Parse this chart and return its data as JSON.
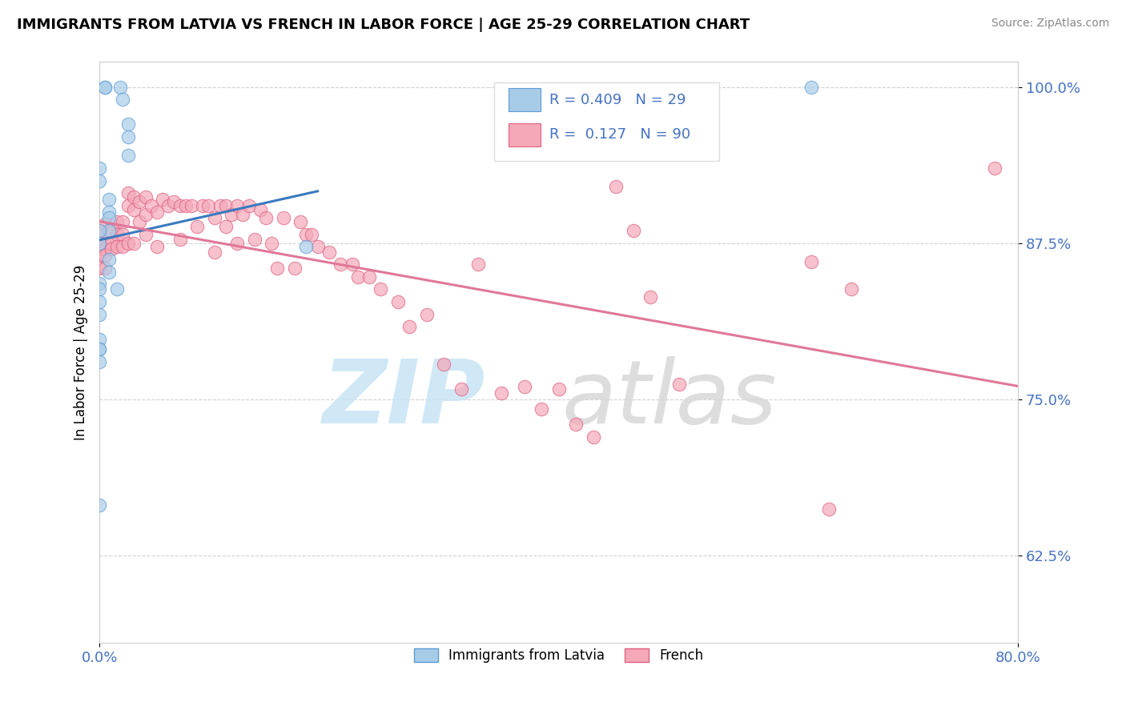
{
  "title": "IMMIGRANTS FROM LATVIA VS FRENCH IN LABOR FORCE | AGE 25-29 CORRELATION CHART",
  "source_text": "Source: ZipAtlas.com",
  "ylabel": "In Labor Force | Age 25-29",
  "xlim": [
    0.0,
    0.8
  ],
  "ylim": [
    0.555,
    1.02
  ],
  "yticks": [
    0.625,
    0.75,
    0.875,
    1.0
  ],
  "ytick_labels": [
    "62.5%",
    "75.0%",
    "87.5%",
    "100.0%"
  ],
  "xticks": [
    0.0,
    0.8
  ],
  "xtick_labels": [
    "0.0%",
    "80.0%"
  ],
  "blue_R": "0.409",
  "blue_N": "29",
  "pink_R": "0.127",
  "pink_N": "90",
  "blue_color": "#a8cce8",
  "pink_color": "#f4a8b8",
  "blue_edge_color": "#5b9bd5",
  "pink_edge_color": "#e06080",
  "blue_line_color": "#3a7abf",
  "pink_line_color": "#e07898",
  "blue_x": [
    0.005,
    0.005,
    0.018,
    0.02,
    0.025,
    0.025,
    0.025,
    0.0,
    0.0,
    0.008,
    0.008,
    0.008,
    0.008,
    0.0,
    0.0,
    0.18,
    0.008,
    0.008,
    0.0,
    0.0,
    0.015,
    0.0,
    0.0,
    0.0,
    0.0,
    0.0,
    0.0,
    0.0,
    0.62
  ],
  "blue_y": [
    1.0,
    1.0,
    1.0,
    0.99,
    0.97,
    0.96,
    0.945,
    0.935,
    0.925,
    0.91,
    0.9,
    0.895,
    0.885,
    0.885,
    0.875,
    0.872,
    0.862,
    0.852,
    0.843,
    0.838,
    0.838,
    0.828,
    0.818,
    0.798,
    0.79,
    0.79,
    0.78,
    0.665,
    1.0
  ],
  "pink_x": [
    0.0,
    0.0,
    0.0,
    0.0,
    0.0,
    0.005,
    0.005,
    0.005,
    0.005,
    0.005,
    0.01,
    0.01,
    0.01,
    0.015,
    0.015,
    0.015,
    0.02,
    0.02,
    0.02,
    0.025,
    0.025,
    0.025,
    0.03,
    0.03,
    0.03,
    0.035,
    0.035,
    0.04,
    0.04,
    0.04,
    0.045,
    0.05,
    0.05,
    0.055,
    0.06,
    0.065,
    0.07,
    0.07,
    0.075,
    0.08,
    0.085,
    0.09,
    0.095,
    0.1,
    0.1,
    0.105,
    0.11,
    0.11,
    0.115,
    0.12,
    0.12,
    0.125,
    0.13,
    0.135,
    0.14,
    0.145,
    0.15,
    0.155,
    0.16,
    0.17,
    0.175,
    0.18,
    0.185,
    0.19,
    0.2,
    0.21,
    0.22,
    0.225,
    0.235,
    0.245,
    0.26,
    0.27,
    0.285,
    0.3,
    0.315,
    0.33,
    0.35,
    0.37,
    0.385,
    0.4,
    0.415,
    0.43,
    0.45,
    0.465,
    0.48,
    0.505,
    0.62,
    0.635,
    0.655,
    0.78
  ],
  "pink_y": [
    0.885,
    0.875,
    0.87,
    0.865,
    0.855,
    0.89,
    0.875,
    0.87,
    0.865,
    0.855,
    0.885,
    0.875,
    0.87,
    0.892,
    0.882,
    0.872,
    0.892,
    0.882,
    0.872,
    0.915,
    0.905,
    0.875,
    0.912,
    0.902,
    0.875,
    0.908,
    0.892,
    0.912,
    0.898,
    0.882,
    0.905,
    0.9,
    0.872,
    0.91,
    0.905,
    0.908,
    0.905,
    0.878,
    0.905,
    0.905,
    0.888,
    0.905,
    0.905,
    0.895,
    0.868,
    0.905,
    0.905,
    0.888,
    0.898,
    0.905,
    0.875,
    0.898,
    0.905,
    0.878,
    0.902,
    0.895,
    0.875,
    0.855,
    0.895,
    0.855,
    0.892,
    0.882,
    0.882,
    0.872,
    0.868,
    0.858,
    0.858,
    0.848,
    0.848,
    0.838,
    0.828,
    0.808,
    0.818,
    0.778,
    0.758,
    0.858,
    0.755,
    0.76,
    0.742,
    0.758,
    0.73,
    0.72,
    0.92,
    0.885,
    0.832,
    0.762,
    0.86,
    0.662,
    0.838,
    0.935
  ]
}
